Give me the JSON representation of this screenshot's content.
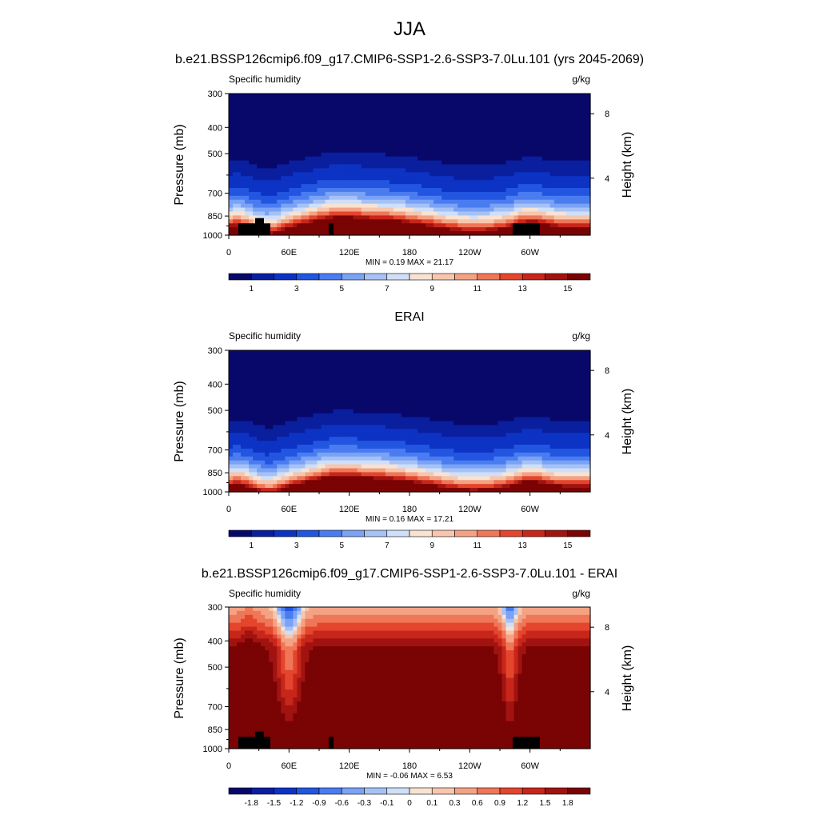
{
  "page": {
    "title": "JJA"
  },
  "chart_data": [
    {
      "type": "heatmap",
      "title": "b.e21.BSSP126cmip6.f09_g17.CMIP6-SSP1-2.6-SSP3-7.0Lu.101 (yrs 2045-2069)",
      "left_label": "Specific humidity",
      "right_label": "g/kg",
      "ylabel": "Pressure (mb)",
      "ylabel_right": "Height (km)",
      "x_ticks": [
        "0",
        "60E",
        "120E",
        "180",
        "120W",
        "60W"
      ],
      "y_ticks": [
        "300",
        "400",
        "500",
        "700",
        "850",
        "1000"
      ],
      "y_right_ticks": [
        "8",
        "4"
      ],
      "stats": "MIN =   0.19  MAX =  21.17",
      "colorbar_labels": [
        "1",
        "3",
        "5",
        "7",
        "9",
        "11",
        "13",
        "15"
      ],
      "colorbar_levels": [
        0.5,
        1,
        2,
        3,
        4,
        5,
        6,
        7,
        8,
        9,
        10,
        11,
        12,
        13,
        14,
        15
      ],
      "min": 0.19,
      "max": 21.17
    },
    {
      "type": "heatmap",
      "title": "ERAI",
      "left_label": "Specific humidity",
      "right_label": "g/kg",
      "ylabel": "Pressure (mb)",
      "ylabel_right": "Height (km)",
      "x_ticks": [
        "0",
        "60E",
        "120E",
        "180",
        "120W",
        "60W"
      ],
      "y_ticks": [
        "300",
        "400",
        "500",
        "700",
        "850",
        "1000"
      ],
      "y_right_ticks": [
        "8",
        "4"
      ],
      "stats": "MIN =   0.16  MAX =  17.21",
      "colorbar_labels": [
        "1",
        "3",
        "5",
        "7",
        "9",
        "11",
        "13",
        "15"
      ],
      "colorbar_levels": [
        0.5,
        1,
        2,
        3,
        4,
        5,
        6,
        7,
        8,
        9,
        10,
        11,
        12,
        13,
        14,
        15
      ],
      "min": 0.16,
      "max": 17.21
    },
    {
      "type": "heatmap",
      "title": "b.e21.BSSP126cmip6.f09_g17.CMIP6-SSP1-2.6-SSP3-7.0Lu.101 - ERAI",
      "left_label": "Specific humidity",
      "right_label": "g/kg",
      "ylabel": "Pressure (mb)",
      "ylabel_right": "Height (km)",
      "x_ticks": [
        "0",
        "60E",
        "120E",
        "180",
        "120W",
        "60W"
      ],
      "y_ticks": [
        "300",
        "400",
        "500",
        "700",
        "850",
        "1000"
      ],
      "y_right_ticks": [
        "8",
        "4"
      ],
      "stats": "MIN =  -0.06  MAX =   6.53",
      "colorbar_labels": [
        "-1.8",
        "-1.5",
        "-1.2",
        "-0.9",
        "-0.6",
        "-0.3",
        "-0.1",
        "0",
        "0.1",
        "0.3",
        "0.6",
        "0.9",
        "1.2",
        "1.5",
        "1.8"
      ],
      "colorbar_levels": [
        -1.8,
        -1.5,
        -1.2,
        -0.9,
        -0.6,
        -0.3,
        -0.1,
        0,
        0.1,
        0.3,
        0.6,
        0.9,
        1.2,
        1.5,
        1.8
      ],
      "min": -0.06,
      "max": 6.53
    }
  ],
  "colormap": [
    "#08086b",
    "#0a1f9e",
    "#0d33c4",
    "#2255e0",
    "#4a7cf0",
    "#7aa2f5",
    "#a6c2f5",
    "#cfdff8",
    "#f8e2d2",
    "#f7c6ad",
    "#f4a284",
    "#ef7657",
    "#e4452d",
    "#c7261a",
    "#a11310",
    "#7a0303"
  ]
}
